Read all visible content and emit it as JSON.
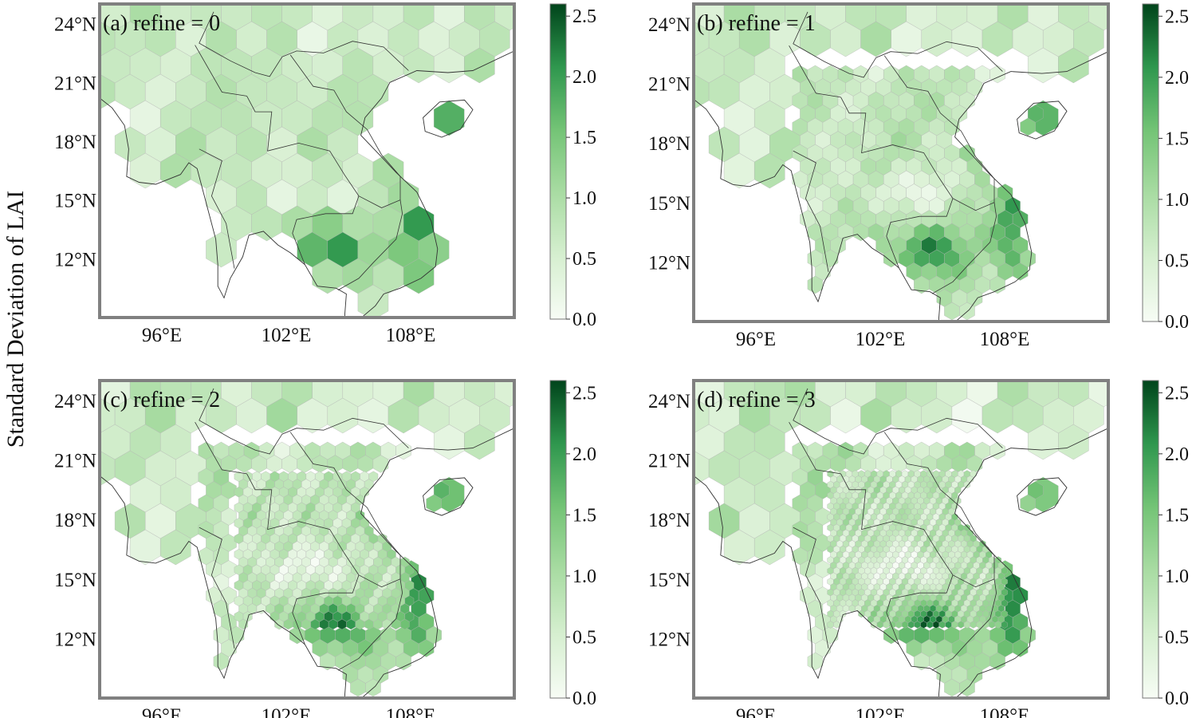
{
  "figure": {
    "ylabel": "Standard Deviation of LAI",
    "colors": {
      "low": "#f7fcf5",
      "mid": "#74c476",
      "high": "#00441b",
      "frame": "#808080",
      "ocean": "#ffffff"
    }
  },
  "panels": [
    {
      "label": "(a) refine = 0",
      "refine": 0
    },
    {
      "label": "(b) refine = 1",
      "refine": 1
    },
    {
      "label": "(c) refine = 2",
      "refine": 2
    },
    {
      "label": "(d) refine = 3",
      "refine": 3
    }
  ],
  "axes": {
    "lat_ticks": [
      "24°N",
      "21°N",
      "18°N",
      "15°N",
      "12°N"
    ],
    "lon_ticks": [
      "96°E",
      "102°E",
      "108°E"
    ]
  },
  "colorbar": {
    "ticks": [
      "0.0",
      "0.5",
      "1.0",
      "1.5",
      "2.0",
      "2.5"
    ],
    "vmin": 0.0,
    "vmax": 2.6
  }
}
